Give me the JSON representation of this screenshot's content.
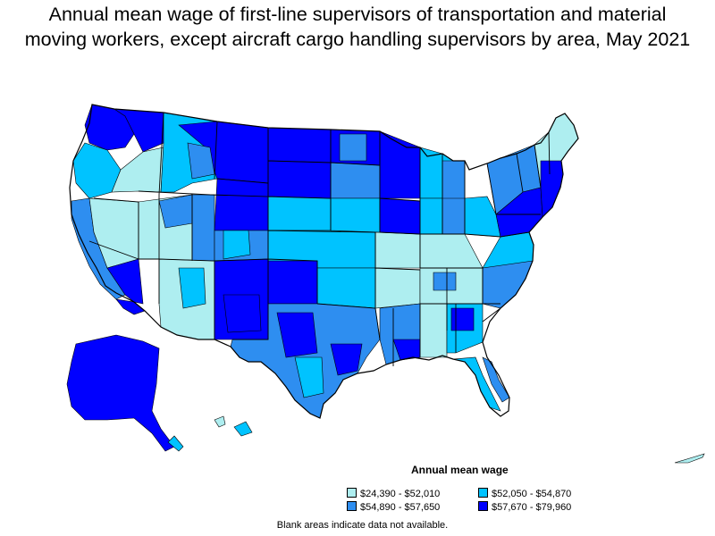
{
  "title": {
    "line1": "Annual mean wage of first-line supervisors of transportation and material",
    "line2": "moving workers, except aircraft cargo handling supervisors by area, May 2021"
  },
  "legend": {
    "title": "Annual mean wage",
    "items": [
      {
        "label": "$24,390 - $52,010",
        "color": "#aeeef0"
      },
      {
        "label": "$52,050 - $54,870",
        "color": "#00c3ff"
      },
      {
        "label": "$54,890 - $57,650",
        "color": "#2e8ef0"
      },
      {
        "label": "$57,670 - $79,960",
        "color": "#0000ff"
      }
    ]
  },
  "note": "Blank areas indicate data not available.",
  "colors": {
    "border": "#000000",
    "background": "#ffffff"
  }
}
